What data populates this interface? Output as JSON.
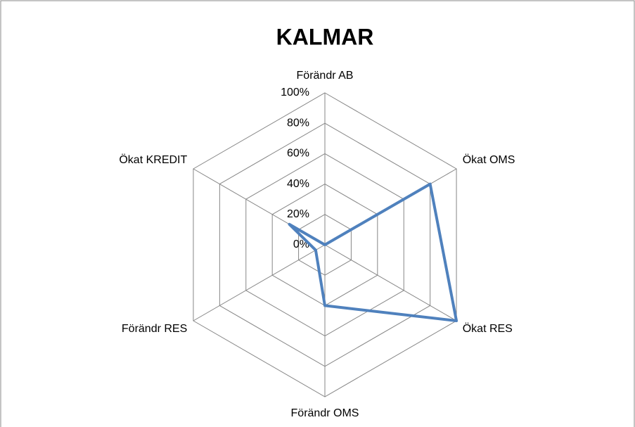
{
  "chart_data": {
    "type": "radar",
    "title": "KALMAR",
    "categories": [
      "Förändr AB",
      "Ökat OMS",
      "Ökat RES",
      "Förändr OMS",
      "Förändr RES",
      "Ökat KREDIT"
    ],
    "values": [
      0,
      80,
      100,
      40,
      7,
      27
    ],
    "color": "#4f81bd",
    "ylim": [
      0,
      100
    ],
    "yticks": [
      {
        "value": 0,
        "label": "0%"
      },
      {
        "value": 20,
        "label": "20%"
      },
      {
        "value": 40,
        "label": "40%"
      },
      {
        "value": 60,
        "label": "60%"
      },
      {
        "value": 80,
        "label": "80%"
      },
      {
        "value": 100,
        "label": "100%"
      }
    ],
    "grid": true
  }
}
